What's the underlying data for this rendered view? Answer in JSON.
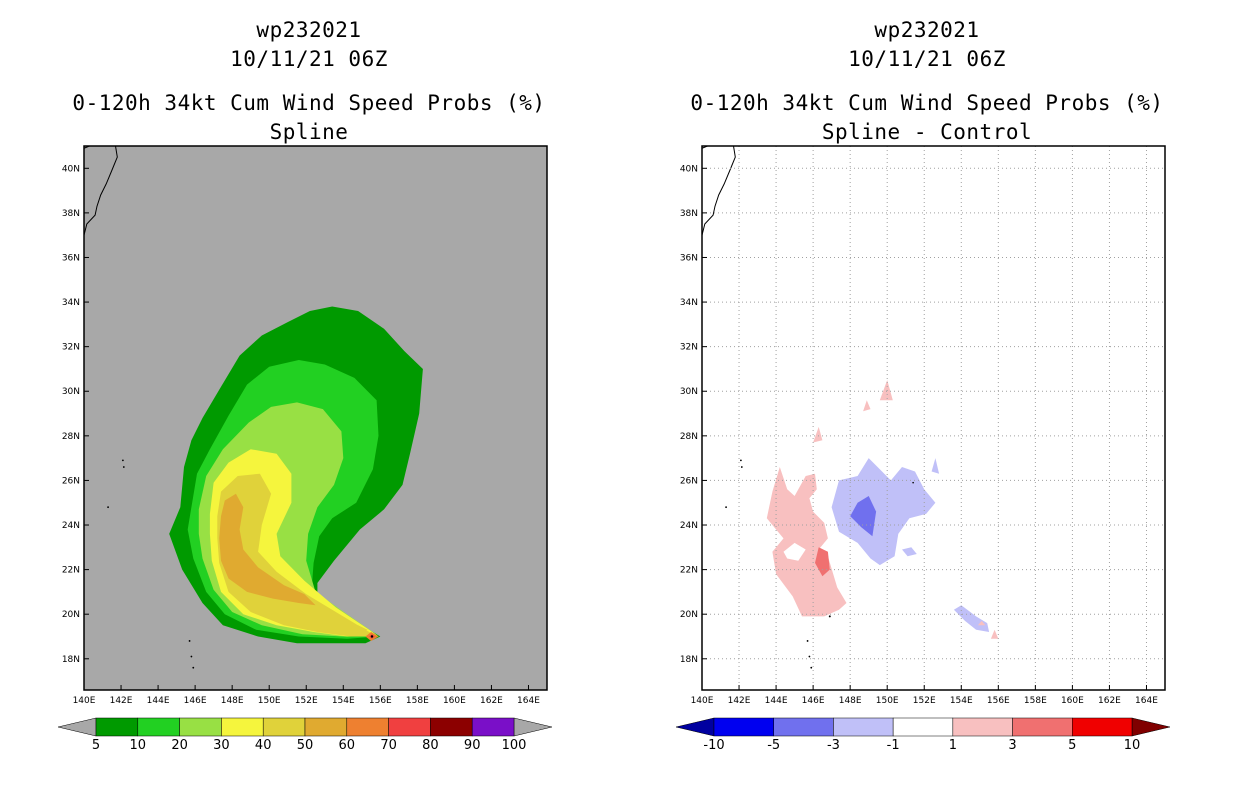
{
  "panels": [
    {
      "title_line1": "wp232021",
      "title_line2": "10/11/21 06Z",
      "title_line3": "0-120h 34kt Cum Wind Speed Probs (%)",
      "title_line4": "Spline",
      "background": "#a8a8a8",
      "colorbar": {
        "labels": [
          "5",
          "10",
          "20",
          "30",
          "40",
          "50",
          "60",
          "70",
          "80",
          "90",
          "100"
        ],
        "colors": [
          "#009a00",
          "#22d022",
          "#98e044",
          "#f5f53d",
          "#e0d23a",
          "#e0aa30",
          "#ee8030",
          "#f04040",
          "#8c0000",
          "#7a0fc8"
        ],
        "under_color": "#a8a8a8",
        "over_color": "#a8a8a8"
      }
    },
    {
      "title_line1": "wp232021",
      "title_line2": "10/11/21 06Z",
      "title_line3": "0-120h 34kt Cum Wind Speed Probs (%)",
      "title_line4": "Spline - Control",
      "background": "#ffffff",
      "colorbar": {
        "labels": [
          "-10",
          "-5",
          "-3",
          "-1",
          "1",
          "3",
          "5",
          "10"
        ],
        "colors": [
          "#0000f0",
          "#7070ee",
          "#c0c0f8",
          "#ffffff",
          "#f8c0c0",
          "#f07070",
          "#f00000"
        ],
        "under_color": "#0000a0",
        "over_color": "#800000"
      }
    }
  ],
  "chart_data": [
    {
      "type": "heatmap",
      "title": "0-120h 34kt Cum Wind Speed Probs (%) - Spline",
      "storm_id": "wp232021",
      "valid_time": "10/11/21 06Z",
      "units": "%",
      "x_range_degE": [
        140,
        165
      ],
      "y_range_degN": [
        16.6,
        41
      ],
      "x_ticks": [
        "140E",
        "142E",
        "144E",
        "146E",
        "148E",
        "150E",
        "152E",
        "154E",
        "156E",
        "158E",
        "160E",
        "162E",
        "164E"
      ],
      "y_ticks": [
        "18N",
        "20N",
        "22N",
        "24N",
        "26N",
        "28N",
        "30N",
        "32N",
        "34N",
        "36N",
        "38N",
        "40N"
      ],
      "contour_levels": [
        5,
        10,
        20,
        30,
        40,
        50,
        60,
        70,
        80,
        90,
        100
      ],
      "features": [
        {
          "level": 5,
          "approx_extent": "144.5E-158.5E, 18.9N-33.8N"
        },
        {
          "level": 10,
          "approx_extent": "145E-156E, 18.9N-31.5N"
        },
        {
          "level": 20,
          "approx_extent": "146E-156E, 18.9N-29.5N"
        },
        {
          "level": 30,
          "approx_extent": "146.5E-156E, 19N-27.2N"
        },
        {
          "level": 40,
          "approx_extent": "147E-155.5E, 19N-26.3N"
        },
        {
          "level": 50,
          "approx_extent": "147E-152.5E, 20.5N-25.3N"
        },
        {
          "level": 60,
          "approx_extent": "155.2E-155.8E, 18.8N-19.1N"
        },
        {
          "level": 70,
          "approx_extent": "155.5E, 19N (max)"
        }
      ]
    },
    {
      "type": "heatmap",
      "title": "0-120h 34kt Cum Wind Speed Probs (%) - Spline - Control",
      "storm_id": "wp232021",
      "valid_time": "10/11/21 06Z",
      "units": "%",
      "x_range_degE": [
        140,
        165
      ],
      "y_range_degN": [
        16.6,
        41
      ],
      "x_ticks": [
        "140E",
        "142E",
        "144E",
        "146E",
        "148E",
        "150E",
        "152E",
        "154E",
        "156E",
        "158E",
        "160E",
        "162E",
        "164E"
      ],
      "y_ticks": [
        "18N",
        "20N",
        "22N",
        "24N",
        "26N",
        "28N",
        "30N",
        "32N",
        "34N",
        "36N",
        "38N",
        "40N"
      ],
      "grid": true,
      "contour_levels": [
        -10,
        -5,
        -3,
        -1,
        1,
        3,
        5,
        10
      ],
      "features": [
        {
          "range": "1 to 3",
          "approx_extent": "143.5E-147.5E, 20N-26.5N"
        },
        {
          "range": "3 to 5",
          "approx_extent": "146.2E-146.8E, 21.8N-22.8N"
        },
        {
          "range": "-3 to -1",
          "approx_extent": "147.5E-152.5E, 22.2N-27N"
        },
        {
          "range": "-5 to -3",
          "approx_extent": "148E-149.3E, 23.5N-25.3N"
        },
        {
          "range": "-3 to -1",
          "approx_extent": "153.5E-155.5E, 19.2N-20.3N"
        },
        {
          "range": "1 to 3",
          "approx_extent": "149.5E-150.2E, 29.3N-30.5N"
        }
      ]
    }
  ]
}
